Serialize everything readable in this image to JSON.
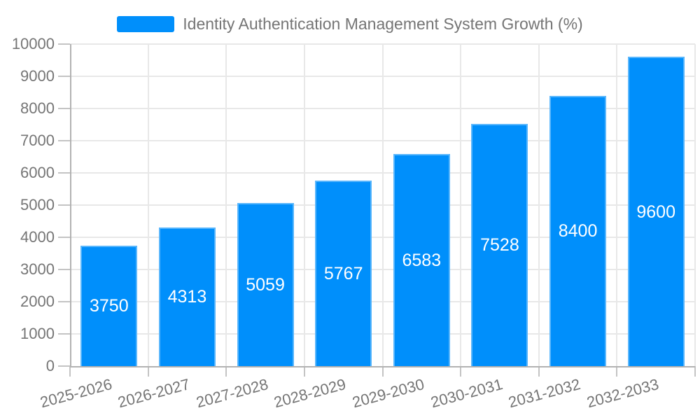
{
  "legend": {
    "label": "Identity Authentication Management System Growth (%)",
    "swatch_color": "#008FFB"
  },
  "chart_data": {
    "type": "bar",
    "title": "Identity Authentication Management System Growth (%)",
    "series_name": "Identity Authentication Management System Growth (%)",
    "categories": [
      "2025-2026",
      "2026-2027",
      "2027-2028",
      "2028-2029",
      "2029-2030",
      "2030-2031",
      "2031-2032",
      "2032-2033"
    ],
    "values": [
      3750,
      4313,
      5059,
      5767,
      6583,
      7528,
      8400,
      9600
    ],
    "bar_labels": [
      "3750",
      "4313",
      "5059",
      "5767",
      "6583",
      "7528",
      "8400",
      "9600"
    ],
    "xlabel": "",
    "ylabel": "",
    "ylim": [
      0,
      10000
    ],
    "yticks": [
      0,
      1000,
      2000,
      3000,
      4000,
      5000,
      6000,
      7000,
      8000,
      9000,
      10000
    ],
    "grid": true,
    "legend_position": "top",
    "x_label_rotation_deg": -15,
    "colors": {
      "bar": "#008FFB",
      "bar_value_text": "#FFFFFF",
      "axis_text": "#757575",
      "legend_text": "#757575",
      "gridline": "#E8E8E8",
      "axis_line": "#B2B2B2",
      "tick": "#C4C4C4",
      "background": "#FFFFFF"
    }
  }
}
